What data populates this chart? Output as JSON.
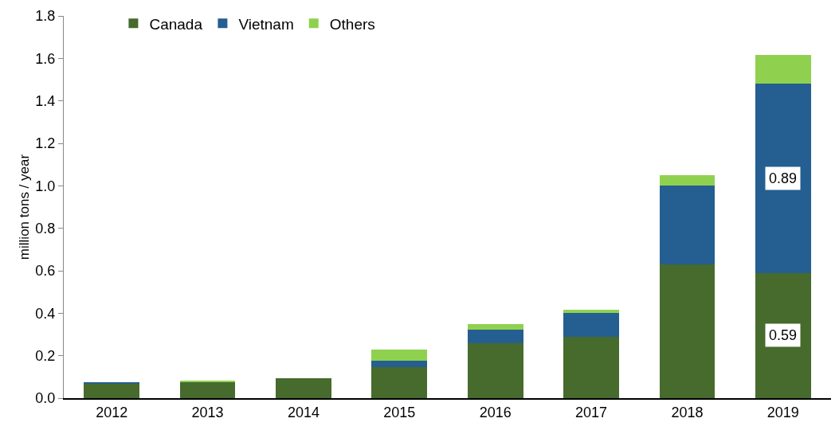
{
  "chart_data": {
    "type": "bar",
    "stacked": true,
    "ylabel": "million tons / year",
    "categories": [
      "2012",
      "2013",
      "2014",
      "2015",
      "2016",
      "2017",
      "2018",
      "2019"
    ],
    "series": [
      {
        "name": "Canada",
        "color": "#466b2d",
        "values": [
          0.07,
          0.074,
          0.095,
          0.145,
          0.26,
          0.29,
          0.63,
          0.59
        ],
        "value_labels": [
          null,
          null,
          null,
          null,
          null,
          null,
          null,
          "0.59"
        ]
      },
      {
        "name": "Vietnam",
        "color": "#255e91",
        "values": [
          0.003,
          0,
          0,
          0.03,
          0.063,
          0.11,
          0.37,
          0.89
        ],
        "value_labels": [
          null,
          null,
          null,
          null,
          null,
          null,
          null,
          "0.89"
        ]
      },
      {
        "name": "Others",
        "color": "#8fd14f",
        "values": [
          0,
          0.01,
          0,
          0.055,
          0.024,
          0.015,
          0.05,
          0.135
        ]
      }
    ],
    "ylim": [
      0,
      1.8
    ],
    "yticks": [
      {
        "value": 0,
        "label": "0.0"
      },
      {
        "value": 0.2,
        "label": "0.2"
      },
      {
        "value": 0.4,
        "label": "0.4"
      },
      {
        "value": 0.6,
        "label": "0.6"
      },
      {
        "value": 0.8,
        "label": "0.8"
      },
      {
        "value": 1,
        "label": "1.0"
      },
      {
        "value": 1.2,
        "label": "1.2"
      },
      {
        "value": 1.4,
        "label": "1.4"
      },
      {
        "value": 1.6,
        "label": "1.6"
      },
      {
        "value": 1.8,
        "label": "1.8"
      }
    ],
    "grid": false,
    "legend": "top left"
  }
}
